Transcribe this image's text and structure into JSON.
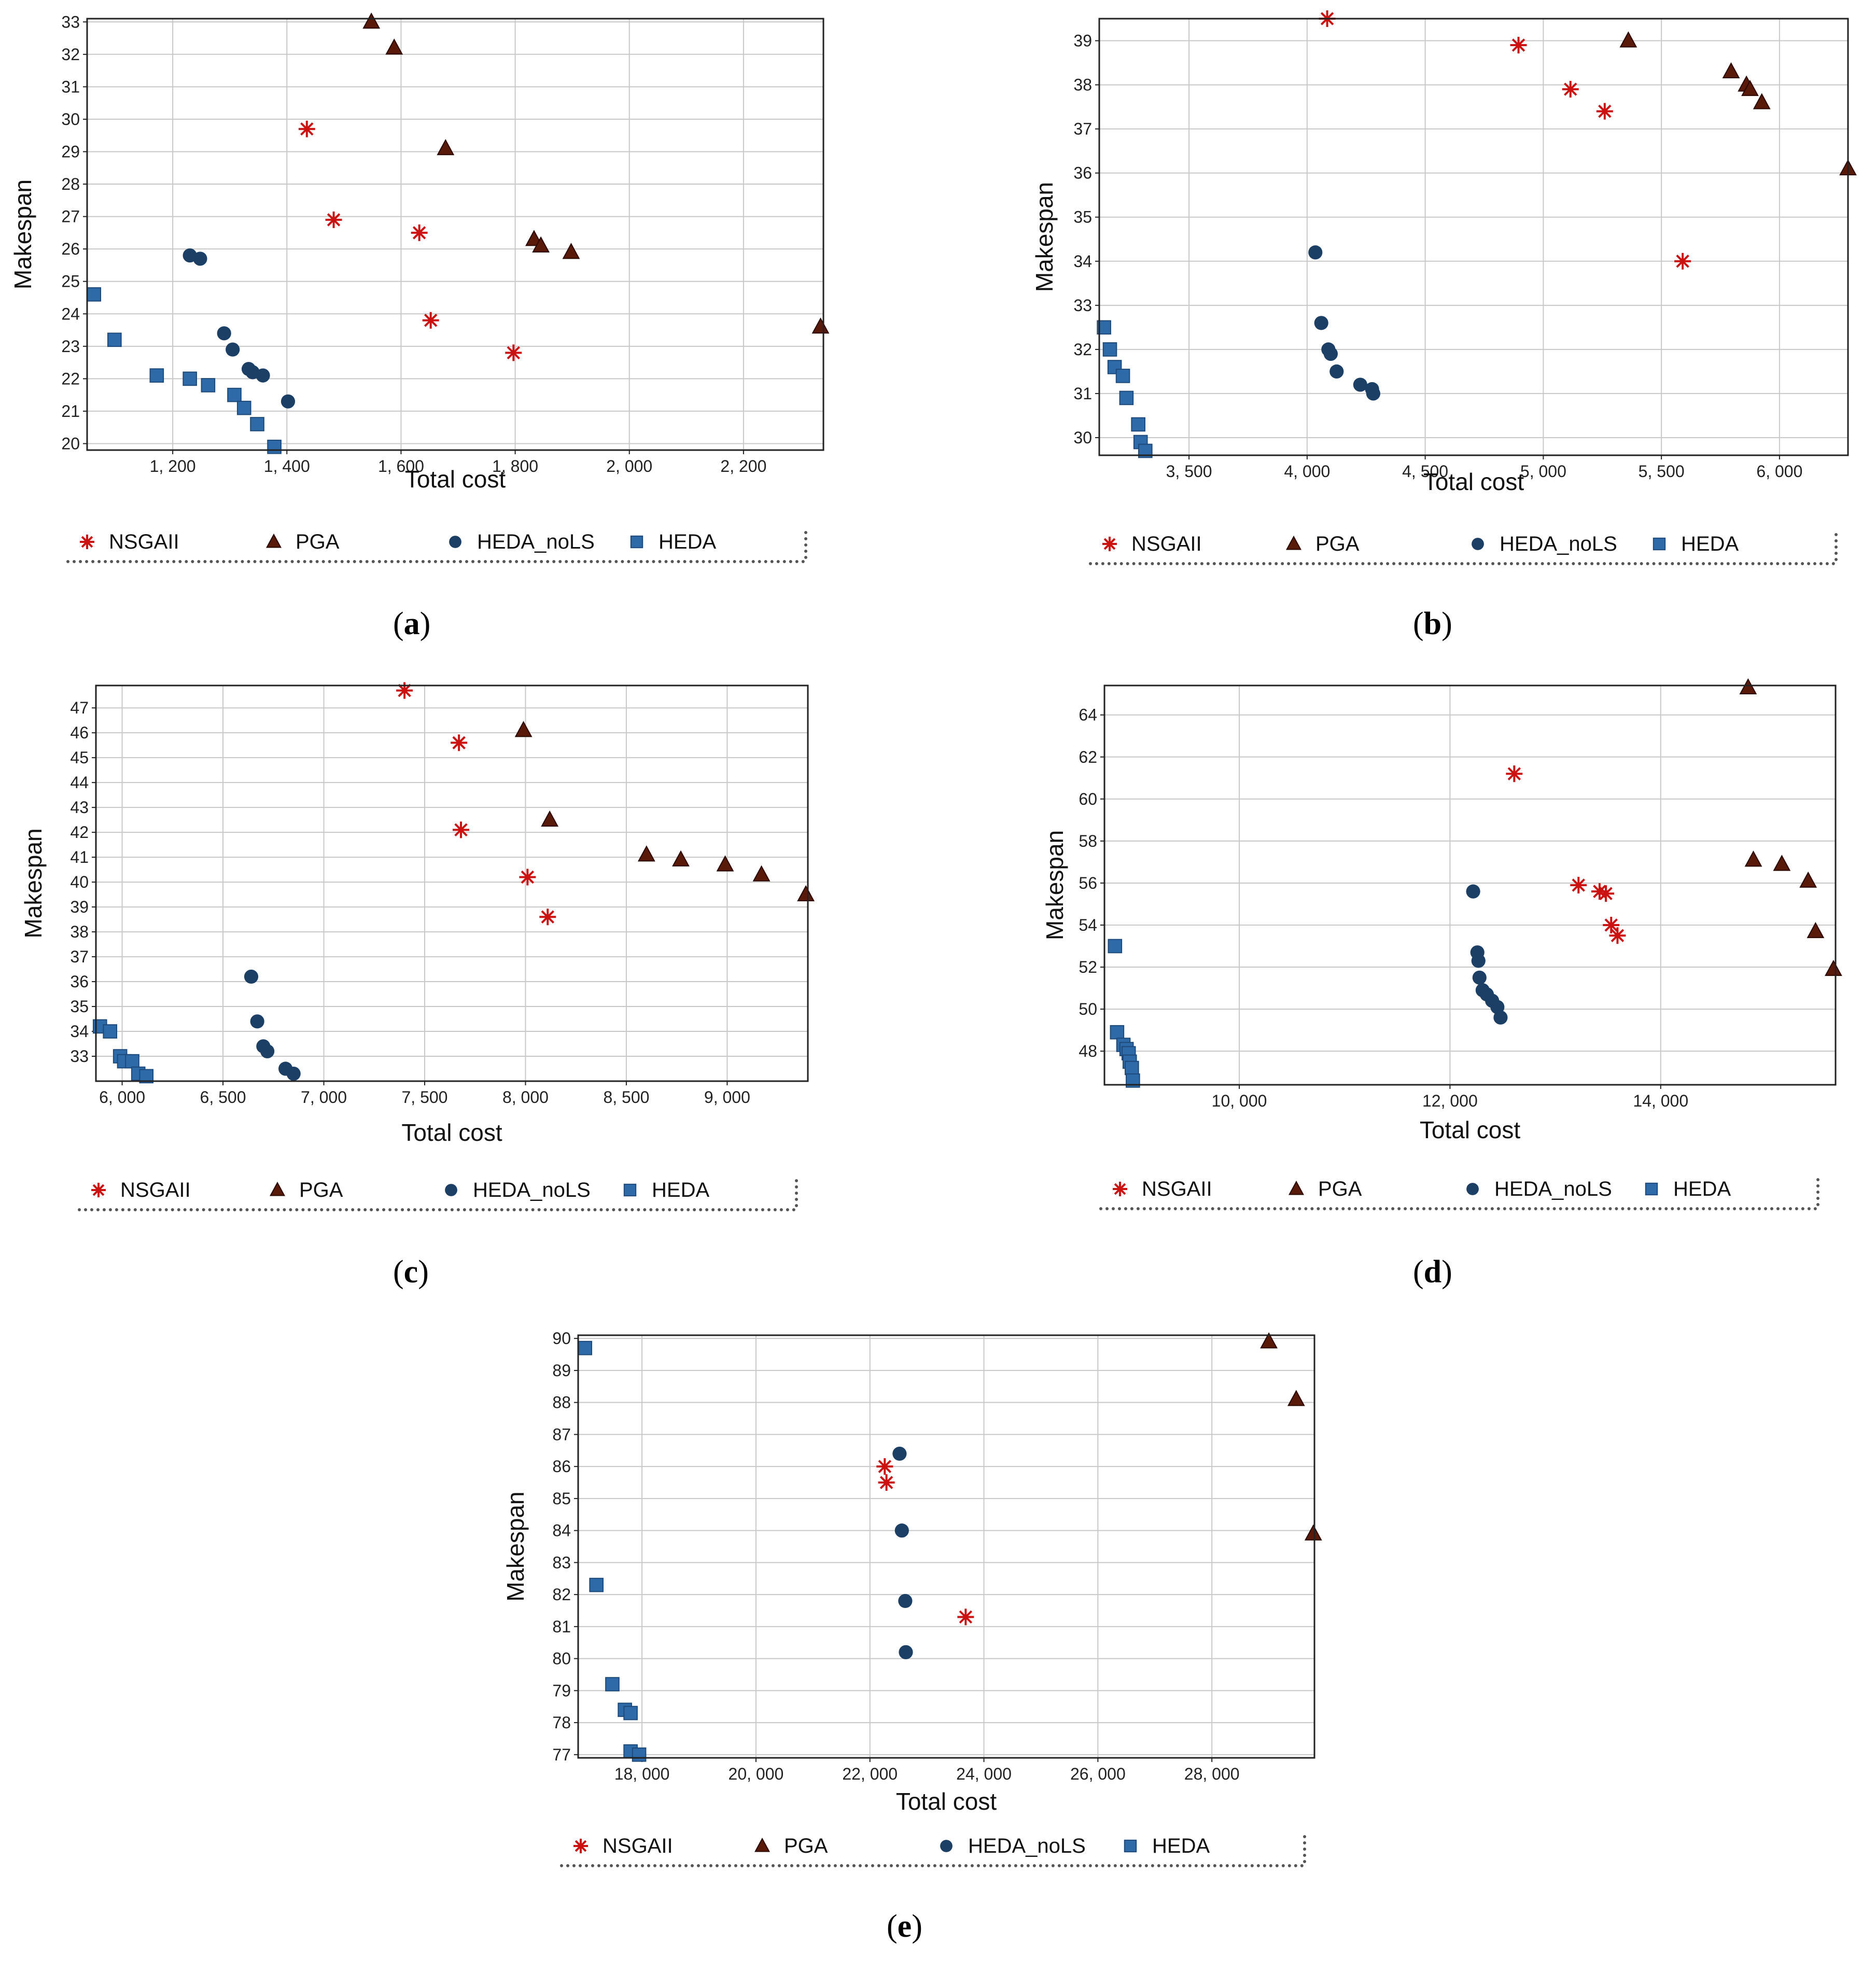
{
  "colors": {
    "NSGAII": "#cc1111",
    "PGA": "#5a1a0a",
    "HEDA_noLS": "#1c3f66",
    "HEDA": "#2f6aa8",
    "grid": "#c8c8c8",
    "frame": "#222222"
  },
  "legend": {
    "labels": [
      "NSGAII",
      "PGA",
      "HEDA_noLS",
      "HEDA"
    ],
    "icons": [
      "asterisk-icon",
      "triangle-icon",
      "circle-icon",
      "square-icon"
    ]
  },
  "chart_data": [
    {
      "type": "scatter",
      "id": "a",
      "caption_label": "a",
      "caption_open": "(",
      "caption_close": ")",
      "xlabel": "Total cost",
      "ylabel": "Makespan",
      "xlim": [
        1050,
        2340
      ],
      "ylim": [
        19.8,
        33.1
      ],
      "xticks": [
        1200,
        1400,
        1600,
        1800,
        2000,
        2200
      ],
      "xtick_labels": [
        "1, 200",
        "1, 400",
        "1, 600",
        "1, 800",
        "2, 000",
        "2, 200"
      ],
      "yticks": [
        20,
        21,
        22,
        23,
        24,
        25,
        26,
        27,
        28,
        29,
        30,
        31,
        32,
        33
      ],
      "ytick_labels": [
        "20",
        "21",
        "22",
        "23",
        "24",
        "25",
        "26",
        "27",
        "28",
        "29",
        "30",
        "31",
        "32",
        "33"
      ],
      "series": [
        {
          "name": "NSGAII",
          "x": [
            1435,
            1482,
            1632,
            1652,
            1797
          ],
          "y": [
            29.7,
            26.9,
            26.5,
            23.8,
            22.8
          ]
        },
        {
          "name": "PGA",
          "x": [
            1548,
            1588,
            1678,
            1833,
            1845,
            1898,
            2335
          ],
          "y": [
            33.0,
            32.2,
            29.1,
            26.3,
            26.1,
            25.9,
            23.6
          ]
        },
        {
          "name": "HEDA_noLS",
          "x": [
            1230,
            1248,
            1290,
            1305,
            1333,
            1340,
            1358,
            1402
          ],
          "y": [
            25.8,
            25.7,
            23.4,
            22.9,
            22.3,
            22.2,
            22.1,
            21.3
          ]
        },
        {
          "name": "HEDA",
          "x": [
            1062,
            1098,
            1172,
            1230,
            1262,
            1308,
            1325,
            1348,
            1378
          ],
          "y": [
            24.6,
            23.2,
            22.1,
            22.0,
            21.8,
            21.5,
            21.1,
            20.6,
            19.9
          ]
        }
      ]
    },
    {
      "type": "scatter",
      "id": "b",
      "caption_label": "b",
      "caption_open": "(",
      "caption_close": ")",
      "xlabel": "Total cost",
      "ylabel": "Makespan",
      "xlim": [
        3120,
        6290
      ],
      "ylim": [
        29.6,
        39.5
      ],
      "xticks": [
        3500,
        4000,
        4500,
        5000,
        5500,
        6000
      ],
      "xtick_labels": [
        "3, 500",
        "4, 000",
        "4, 500",
        "5, 000",
        "5, 500",
        "6, 000"
      ],
      "yticks": [
        30,
        31,
        32,
        33,
        34,
        35,
        36,
        37,
        38,
        39
      ],
      "ytick_labels": [
        "30",
        "31",
        "32",
        "33",
        "34",
        "35",
        "36",
        "37",
        "38",
        "39"
      ],
      "series": [
        {
          "name": "NSGAII",
          "x": [
            4085,
            4895,
            5115,
            5260,
            5590
          ],
          "y": [
            39.5,
            38.9,
            37.9,
            37.4,
            34.0
          ]
        },
        {
          "name": "PGA",
          "x": [
            5360,
            5795,
            5860,
            5875,
            5925,
            6290
          ],
          "y": [
            39.0,
            38.3,
            38.0,
            37.9,
            37.6,
            36.1
          ]
        },
        {
          "name": "HEDA_noLS",
          "x": [
            4035,
            4060,
            4090,
            4100,
            4125,
            4225,
            4275,
            4280
          ],
          "y": [
            34.2,
            32.6,
            32.0,
            31.9,
            31.5,
            31.2,
            31.1,
            31.0
          ]
        },
        {
          "name": "HEDA",
          "x": [
            3140,
            3165,
            3185,
            3220,
            3235,
            3285,
            3295,
            3315
          ],
          "y": [
            32.5,
            32.0,
            31.6,
            31.4,
            30.9,
            30.3,
            29.9,
            29.7
          ]
        }
      ]
    },
    {
      "type": "scatter",
      "id": "c",
      "caption_label": "c",
      "caption_open": "(",
      "caption_close": ")",
      "xlabel": "Total cost",
      "ylabel": "Makespan",
      "xlim": [
        5870,
        9400
      ],
      "ylim": [
        32.0,
        47.9
      ],
      "xticks": [
        6000,
        6500,
        7000,
        7500,
        8000,
        8500,
        9000
      ],
      "xtick_labels": [
        "6, 000",
        "6, 500",
        "7, 000",
        "7, 500",
        "8, 000",
        "8, 500",
        "9, 000"
      ],
      "yticks": [
        33,
        34,
        35,
        36,
        37,
        38,
        39,
        40,
        41,
        42,
        43,
        44,
        45,
        46,
        47
      ],
      "ytick_labels": [
        "33",
        "34",
        "35",
        "36",
        "37",
        "38",
        "39",
        "40",
        "41",
        "42",
        "43",
        "44",
        "45",
        "46",
        "47"
      ],
      "series": [
        {
          "name": "NSGAII",
          "x": [
            7400,
            7670,
            7680,
            8010,
            8110
          ],
          "y": [
            47.7,
            45.6,
            42.1,
            40.2,
            38.6
          ]
        },
        {
          "name": "PGA",
          "x": [
            7990,
            8120,
            8600,
            8770,
            8990,
            9170,
            9390
          ],
          "y": [
            46.1,
            42.5,
            41.1,
            40.9,
            40.7,
            40.3,
            39.5
          ]
        },
        {
          "name": "HEDA_noLS",
          "x": [
            6640,
            6670,
            6700,
            6720,
            6810,
            6850
          ],
          "y": [
            36.2,
            34.4,
            33.4,
            33.2,
            32.5,
            32.3
          ]
        },
        {
          "name": "HEDA",
          "x": [
            5890,
            5940,
            5990,
            6010,
            6050,
            6080,
            6120
          ],
          "y": [
            34.2,
            34.0,
            33.0,
            32.8,
            32.8,
            32.3,
            32.2
          ]
        }
      ]
    },
    {
      "type": "scatter",
      "id": "d",
      "caption_label": "d",
      "caption_open": "(",
      "caption_close": ")",
      "xlabel": "Total cost",
      "ylabel": "Makespan",
      "xlim": [
        8720,
        15660
      ],
      "ylim": [
        46.4,
        65.4
      ],
      "xticks": [
        10000,
        12000,
        14000
      ],
      "xtick_labels": [
        "10, 000",
        "12, 000",
        "14, 000"
      ],
      "yticks": [
        48,
        50,
        52,
        54,
        56,
        58,
        60,
        62,
        64
      ],
      "ytick_labels": [
        "48",
        "50",
        "52",
        "54",
        "56",
        "58",
        "60",
        "62",
        "64"
      ],
      "series": [
        {
          "name": "NSGAII",
          "x": [
            12610,
            13220,
            13420,
            13480,
            13530,
            13590
          ],
          "y": [
            61.2,
            55.9,
            55.6,
            55.5,
            54.0,
            53.5
          ]
        },
        {
          "name": "PGA",
          "x": [
            14830,
            14880,
            15150,
            15400,
            15470,
            15640
          ],
          "y": [
            65.3,
            57.1,
            56.9,
            56.1,
            53.7,
            51.9
          ]
        },
        {
          "name": "HEDA_noLS",
          "x": [
            12220,
            12260,
            12270,
            12280,
            12310,
            12350,
            12400,
            12450,
            12480
          ],
          "y": [
            55.6,
            52.7,
            52.3,
            51.5,
            50.9,
            50.7,
            50.4,
            50.1,
            49.6
          ]
        },
        {
          "name": "HEDA",
          "x": [
            8820,
            8840,
            8900,
            8930,
            8950,
            8960,
            8980,
            8990
          ],
          "y": [
            53.0,
            48.9,
            48.3,
            48.1,
            47.9,
            47.5,
            47.2,
            46.6
          ]
        }
      ]
    },
    {
      "type": "scatter",
      "id": "e",
      "caption_label": "e",
      "caption_open": "(",
      "caption_close": ")",
      "xlabel": "Total cost",
      "ylabel": "Makespan",
      "xlim": [
        16880,
        29800
      ],
      "ylim": [
        76.9,
        90.1
      ],
      "xticks": [
        18000,
        20000,
        22000,
        24000,
        26000,
        28000
      ],
      "xtick_labels": [
        "18, 000",
        "20, 000",
        "22, 000",
        "24, 000",
        "26, 000",
        "28, 000"
      ],
      "yticks": [
        77,
        78,
        79,
        80,
        81,
        82,
        83,
        84,
        85,
        86,
        87,
        88,
        89,
        90
      ],
      "ytick_labels": [
        "77",
        "78",
        "79",
        "80",
        "81",
        "82",
        "83",
        "84",
        "85",
        "86",
        "87",
        "88",
        "89",
        "90"
      ],
      "series": [
        {
          "name": "NSGAII",
          "x": [
            22260,
            22290,
            23680
          ],
          "y": [
            86.0,
            85.5,
            81.3
          ]
        },
        {
          "name": "PGA",
          "x": [
            29000,
            29480,
            29780
          ],
          "y": [
            89.9,
            88.1,
            83.9
          ]
        },
        {
          "name": "HEDA_noLS",
          "x": [
            22520,
            22560,
            22620,
            22630
          ],
          "y": [
            86.4,
            84.0,
            81.8,
            80.2
          ]
        },
        {
          "name": "HEDA",
          "x": [
            17000,
            17200,
            17480,
            17700,
            17800,
            17800,
            17950
          ],
          "y": [
            89.7,
            82.3,
            79.2,
            78.4,
            78.3,
            77.1,
            77.0
          ]
        }
      ]
    }
  ]
}
